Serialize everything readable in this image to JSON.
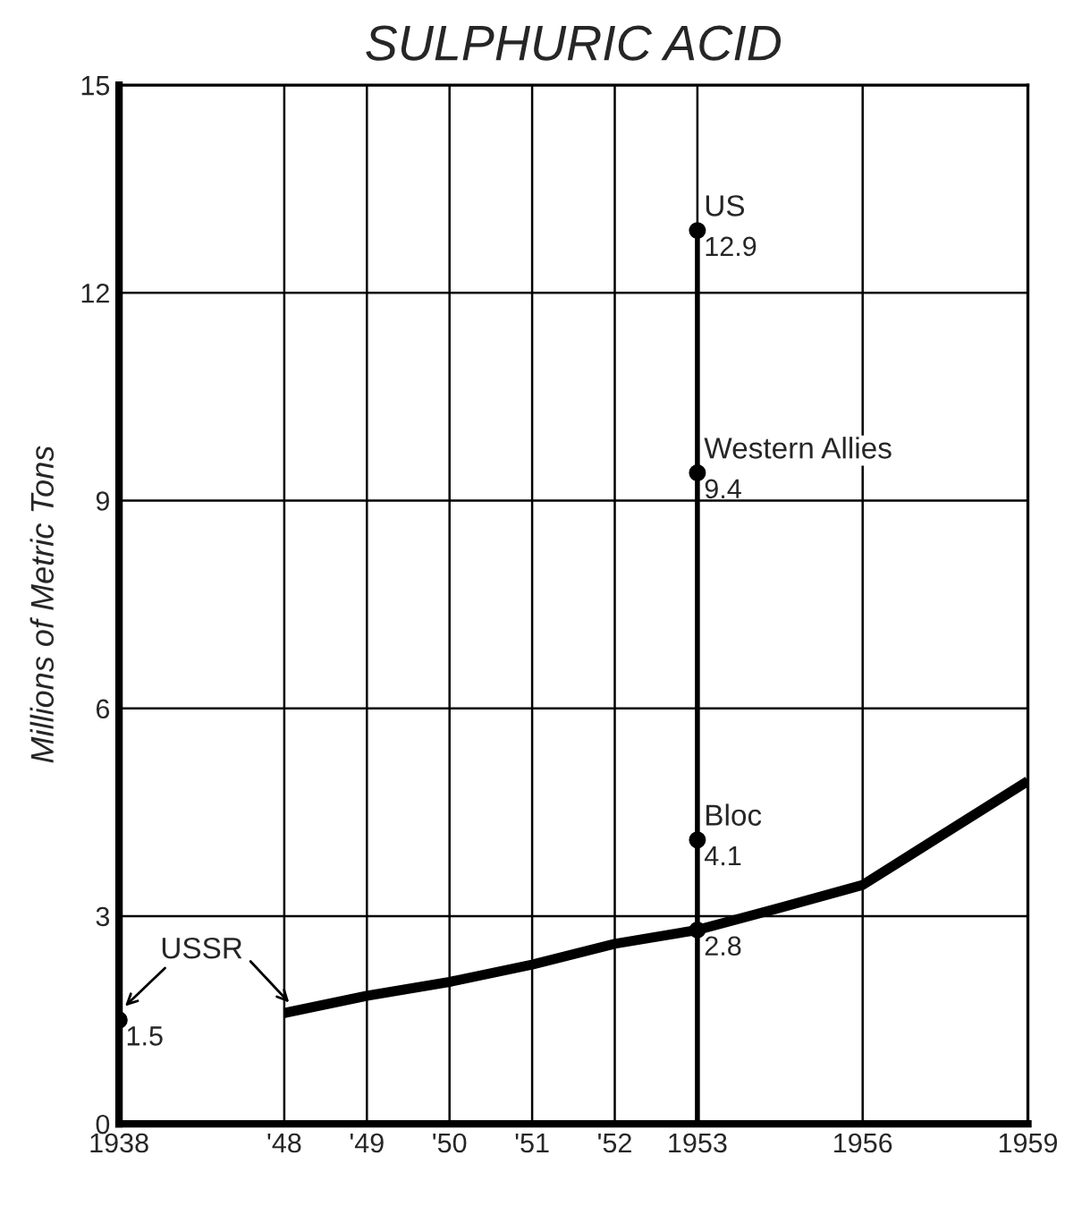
{
  "chart_data": {
    "type": "line",
    "title": "SULPHURIC ACID",
    "ylabel": "Millions of Metric Tons",
    "categories": [
      "1938",
      null,
      "'48",
      "'49",
      "'50",
      "'51",
      "'52",
      "1953",
      null,
      "1956",
      null,
      "1959"
    ],
    "series": [
      {
        "name": "USSR",
        "color": "#000000",
        "marker": "none",
        "values": [
          1.5,
          null,
          1.6,
          1.85,
          2.05,
          2.3,
          2.6,
          2.8,
          3.12,
          3.45,
          4.2,
          4.95
        ],
        "value_labels": [
          "1.5",
          null,
          null,
          null,
          null,
          null,
          null,
          "2.8",
          null,
          null,
          null,
          null
        ]
      },
      {
        "color": "#000000",
        "type": "scatter",
        "marker": "circle",
        "values": [
          null,
          null,
          null,
          null,
          null,
          null,
          null,
          2.8,
          null,
          null,
          null,
          null
        ]
      },
      {
        "name": "US",
        "color": "#000000",
        "type": "lollipop",
        "marker": "circle",
        "values": [
          null,
          null,
          null,
          null,
          null,
          null,
          null,
          12.9,
          null,
          null,
          null,
          null
        ],
        "value_labels": [
          null,
          null,
          null,
          null,
          null,
          null,
          null,
          "12.9",
          null,
          null,
          null,
          null
        ]
      },
      {
        "name": "Western Allies",
        "color": "#000000",
        "type": "scatter",
        "marker": "circle",
        "values": [
          null,
          null,
          null,
          null,
          null,
          null,
          null,
          9.4,
          null,
          null,
          null,
          null
        ],
        "value_labels": [
          null,
          null,
          null,
          null,
          null,
          null,
          null,
          "9.4",
          null,
          null,
          null,
          null
        ]
      },
      {
        "name": "Bloc",
        "color": "#000000",
        "type": "scatter",
        "marker": "circle",
        "values": [
          null,
          null,
          null,
          null,
          null,
          null,
          null,
          4.1,
          null,
          null,
          null,
          null
        ],
        "value_labels": [
          null,
          null,
          null,
          null,
          null,
          null,
          null,
          "4.1",
          null,
          null,
          null,
          null
        ]
      }
    ],
    "ylim": [
      0,
      15
    ],
    "yticks": [
      0,
      3,
      6,
      9,
      12,
      15
    ],
    "grid": true
  }
}
